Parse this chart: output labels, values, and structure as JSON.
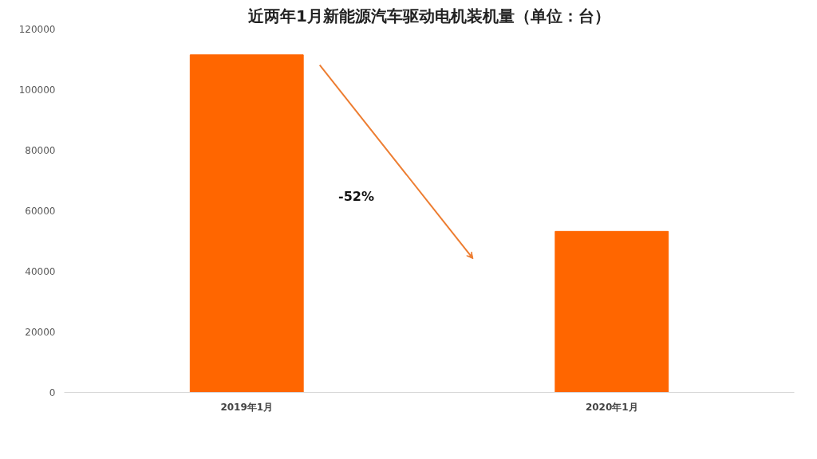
{
  "chart_data": {
    "type": "bar",
    "title": "近两年1月新能源汽车驱动电机装机量（单位：台）",
    "categories": [
      "2019年1月",
      "2020年1月"
    ],
    "values": [
      111500,
      53200
    ],
    "color": "#ff6600",
    "ylim": [
      0,
      120000
    ],
    "yticks": [
      0,
      20000,
      40000,
      60000,
      80000,
      100000,
      120000
    ],
    "grid": false,
    "annotations": [
      "-52%"
    ]
  }
}
